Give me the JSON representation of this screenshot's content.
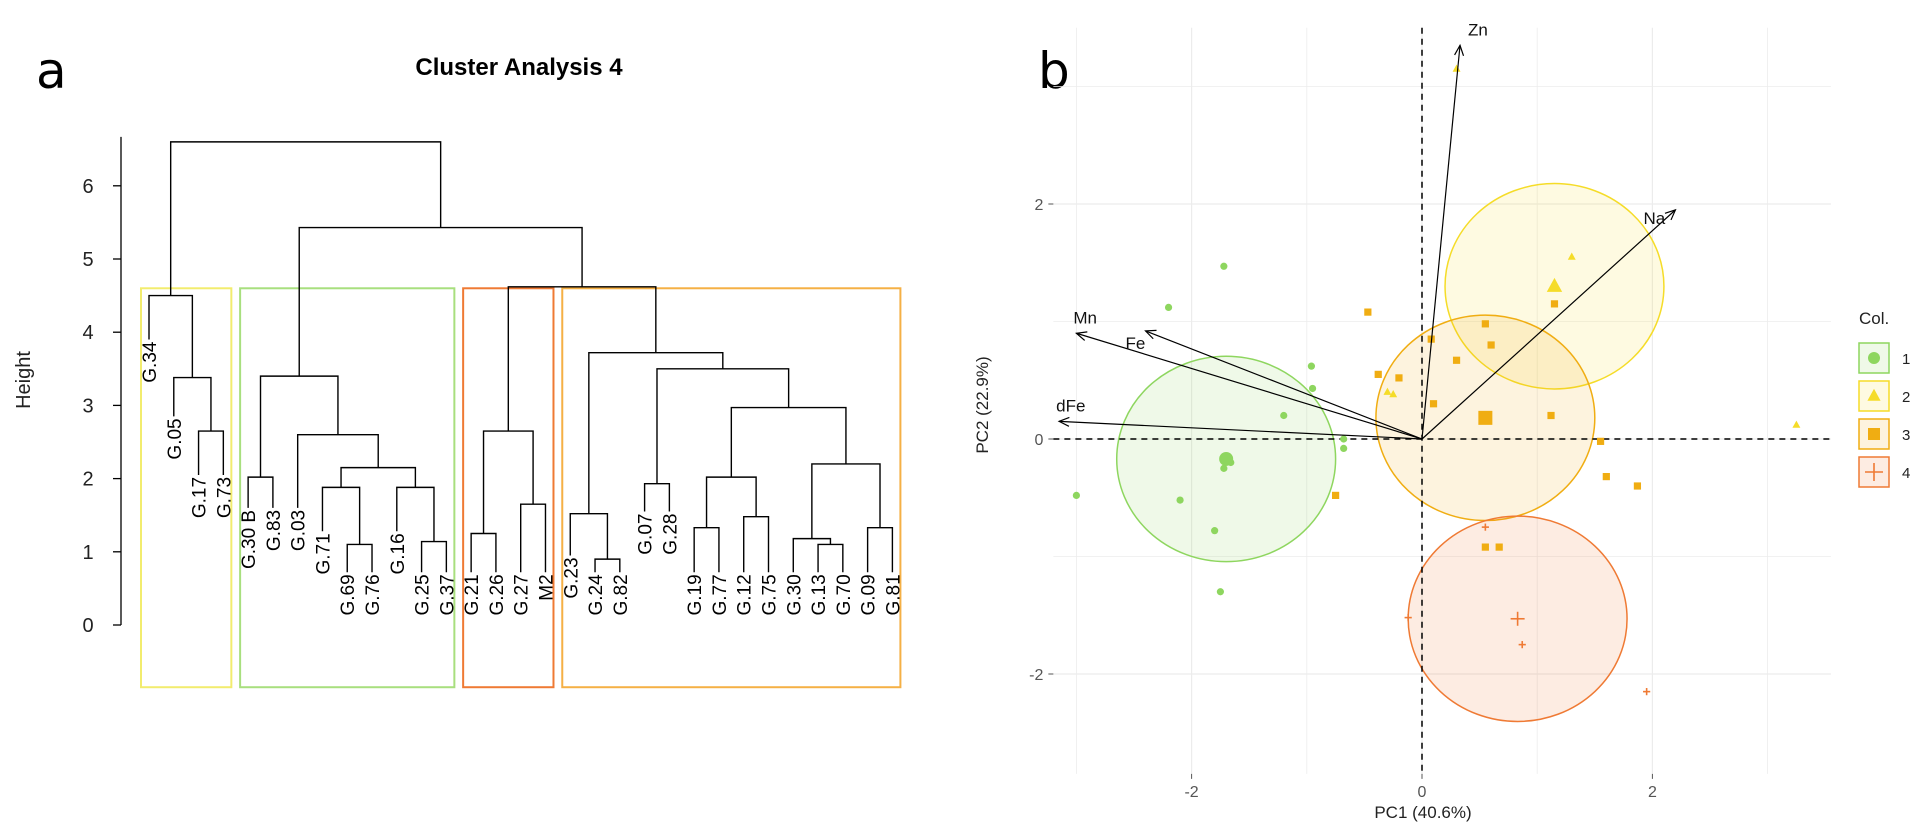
{
  "chart_data": [
    {
      "type": "dendrogram",
      "panel_label": "a",
      "title": "Cluster Analysis 4",
      "ylabel": "Height",
      "ylim": [
        0,
        6.6
      ],
      "yticks": [
        "0",
        "1",
        "2",
        "3",
        "4",
        "5",
        "6"
      ],
      "leaves": [
        "G.34",
        "G.05",
        "G.17",
        "G.73",
        "G.30 B",
        "G.83",
        "G.03",
        "G.71",
        "G.69",
        "G.76",
        "G.16",
        "G.25",
        "G.37",
        "G.21",
        "G.26",
        "G.27",
        "M2",
        "G.23",
        "G.24",
        "G.82",
        "G.07",
        "G.28",
        "G.19",
        "G.77",
        "G.12",
        "G.75",
        "G.30",
        "G.13",
        "G.70",
        "G.09",
        "G.81"
      ],
      "merges": [
        {
          "a": "L3",
          "b": "L4",
          "h": 2.65
        },
        {
          "a": "L2",
          "b": "M0",
          "h": 3.38
        },
        {
          "a": "L1",
          "b": "M1",
          "h": 4.5
        },
        {
          "a": "L5",
          "b": "L6",
          "h": 2.02
        },
        {
          "a": "L9",
          "b": "L10",
          "h": 1.1
        },
        {
          "a": "L8",
          "b": "M4",
          "h": 1.88
        },
        {
          "a": "L12",
          "b": "L13",
          "h": 1.14
        },
        {
          "a": "L11",
          "b": "M6",
          "h": 1.88
        },
        {
          "a": "M5",
          "b": "M7",
          "h": 2.15
        },
        {
          "a": "L7",
          "b": "M8",
          "h": 2.6
        },
        {
          "a": "M3",
          "b": "M9",
          "h": 3.4
        },
        {
          "a": "L14",
          "b": "L15",
          "h": 1.25
        },
        {
          "a": "L16",
          "b": "L17",
          "h": 1.65
        },
        {
          "a": "M11",
          "b": "M12",
          "h": 2.65
        },
        {
          "a": "L19",
          "b": "L20",
          "h": 0.9
        },
        {
          "a": "L18",
          "b": "M14",
          "h": 1.52
        },
        {
          "a": "L21",
          "b": "L22",
          "h": 1.93
        },
        {
          "a": "L23",
          "b": "L24",
          "h": 1.33
        },
        {
          "a": "L25",
          "b": "L26",
          "h": 1.48
        },
        {
          "a": "M17",
          "b": "M18",
          "h": 2.02
        },
        {
          "a": "L28",
          "b": "L29",
          "h": 1.1
        },
        {
          "a": "L27",
          "b": "M20",
          "h": 1.18
        },
        {
          "a": "L30",
          "b": "L31",
          "h": 1.33
        },
        {
          "a": "M21",
          "b": "M22",
          "h": 2.2
        },
        {
          "a": "M19",
          "b": "M23",
          "h": 2.97
        },
        {
          "a": "M16",
          "b": "M24",
          "h": 3.5
        },
        {
          "a": "M15",
          "b": "M25",
          "h": 3.72
        },
        {
          "a": "M13",
          "b": "M26",
          "h": 4.62
        },
        {
          "a": "M10",
          "b": "M27",
          "h": 5.43
        },
        {
          "a": "M2",
          "b": "M28",
          "h": 6.6
        }
      ],
      "clusters": [
        {
          "from": 1,
          "to": 4,
          "color": "#f2ec6e"
        },
        {
          "from": 5,
          "to": 13,
          "color": "#a8df7e"
        },
        {
          "from": 14,
          "to": 17,
          "color": "#ef7a34"
        },
        {
          "from": 18,
          "to": 31,
          "color": "#f5b045"
        }
      ]
    },
    {
      "type": "biplot",
      "panel_label": "b",
      "xlabel": "PC1 (40.6%)",
      "ylabel": "PC2 (22.9%)",
      "xlim": [
        -3.2,
        3.55
      ],
      "ylim": [
        -2.85,
        3.5
      ],
      "xticks": [
        "-2",
        "0",
        "2"
      ],
      "yticks": [
        "-2",
        "0",
        "2"
      ],
      "legend": {
        "title": "Col.",
        "position": "right"
      },
      "groups": [
        {
          "name": "1",
          "color": "#8ed65f",
          "shape": "circle",
          "center": [
            -1.7,
            -0.17
          ],
          "radius": 0.95,
          "points": [
            [
              -2.2,
              1.12
            ],
            [
              -3.0,
              -0.48
            ],
            [
              -1.8,
              -0.78
            ],
            [
              -2.1,
              -0.52
            ],
            [
              -1.72,
              1.47
            ],
            [
              -1.72,
              -0.25
            ],
            [
              -1.66,
              -0.2
            ],
            [
              -0.95,
              0.43
            ],
            [
              -0.96,
              0.62
            ],
            [
              -1.2,
              0.2
            ],
            [
              -1.75,
              -1.3
            ],
            [
              -0.68,
              0.0
            ],
            [
              -0.68,
              -0.08
            ]
          ]
        },
        {
          "name": "2",
          "color": "#f5dc28",
          "shape": "triangle",
          "center": [
            1.15,
            1.3
          ],
          "radius": 0.95,
          "points": [
            [
              0.3,
              3.15
            ],
            [
              1.3,
              1.55
            ],
            [
              -0.25,
              0.38
            ],
            [
              3.25,
              0.12
            ],
            [
              -0.3,
              0.4
            ]
          ]
        },
        {
          "name": "3",
          "color": "#f0ad12",
          "shape": "square",
          "center": [
            0.55,
            0.18
          ],
          "radius": 0.95,
          "points": [
            [
              -0.47,
              1.08
            ],
            [
              1.15,
              1.15
            ],
            [
              0.55,
              0.98
            ],
            [
              0.08,
              0.85
            ],
            [
              0.6,
              0.8
            ],
            [
              0.3,
              0.67
            ],
            [
              -0.38,
              0.55
            ],
            [
              -0.2,
              0.52
            ],
            [
              0.1,
              0.3
            ],
            [
              1.12,
              0.2
            ],
            [
              1.55,
              -0.02
            ],
            [
              -0.75,
              -0.48
            ],
            [
              1.6,
              -0.32
            ],
            [
              1.87,
              -0.4
            ],
            [
              0.55,
              -0.92
            ],
            [
              0.67,
              -0.92
            ]
          ]
        },
        {
          "name": "4",
          "color": "#ef7a34",
          "shape": "cross",
          "center": [
            0.83,
            -1.53
          ],
          "radius": 0.95,
          "points": [
            [
              -0.12,
              -1.52
            ],
            [
              0.55,
              -0.75
            ],
            [
              0.87,
              -1.75
            ],
            [
              1.95,
              -2.15
            ]
          ]
        }
      ],
      "loadings": [
        {
          "label": "Zn",
          "x": 0.33,
          "y": 3.35
        },
        {
          "label": "Na",
          "x": 2.2,
          "y": 1.95
        },
        {
          "label": "Mn",
          "x": -3.0,
          "y": 0.9
        },
        {
          "label": "Fe",
          "x": -2.4,
          "y": 0.92
        },
        {
          "label": "dFe",
          "x": -3.15,
          "y": 0.15
        }
      ]
    }
  ]
}
